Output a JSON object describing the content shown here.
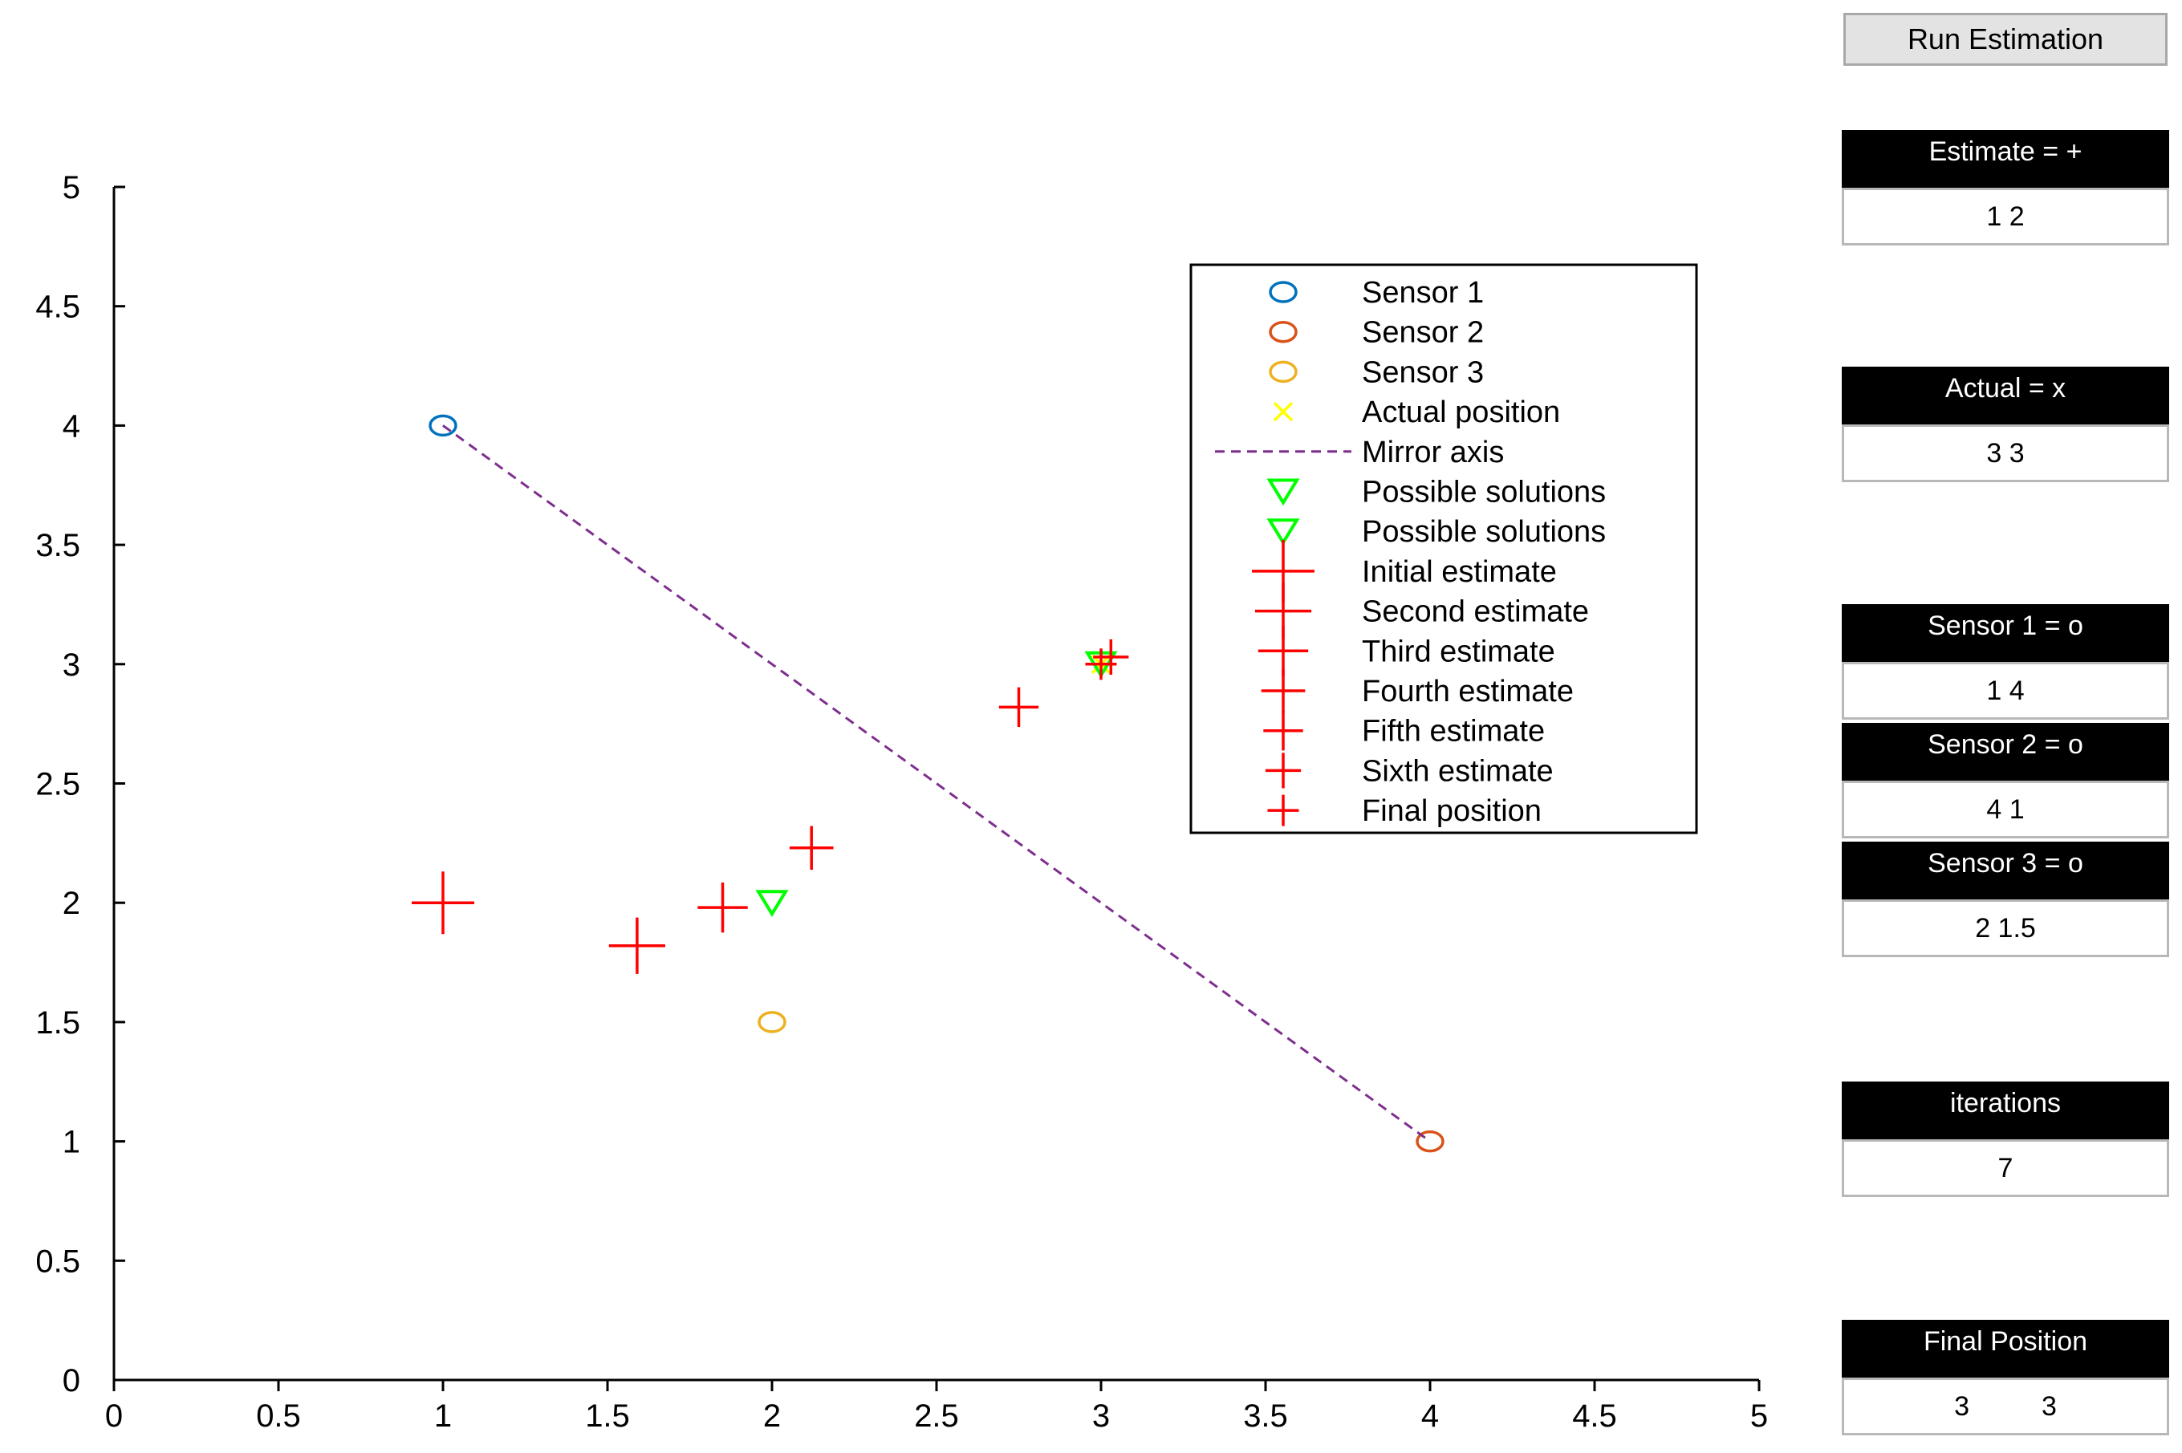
{
  "controls": {
    "run_button": "Run Estimation",
    "panels": [
      {
        "key": "estimate",
        "label": "Estimate = +",
        "value": "1 2"
      },
      {
        "key": "actual",
        "label": "Actual = x",
        "value": "3 3"
      },
      {
        "key": "sensor1",
        "label": "Sensor 1 = o",
        "value": "1 4"
      },
      {
        "key": "sensor2",
        "label": "Sensor 2 = o",
        "value": "4 1"
      },
      {
        "key": "sensor3",
        "label": "Sensor 3 = o",
        "value": "2 1.5"
      },
      {
        "key": "iterations",
        "label": "iterations",
        "value": "7"
      }
    ],
    "final_position": {
      "label": "Final Position",
      "x": "3",
      "y": "3"
    }
  },
  "chart_data": {
    "type": "scatter",
    "xlim": [
      0,
      5
    ],
    "ylim": [
      0,
      5
    ],
    "xticks": [
      "0",
      "0.5",
      "1",
      "1.5",
      "2",
      "2.5",
      "3",
      "3.5",
      "4",
      "4.5",
      "5"
    ],
    "yticks": [
      "0",
      "0.5",
      "1",
      "1.5",
      "2",
      "2.5",
      "3",
      "3.5",
      "4",
      "4.5",
      "5"
    ],
    "grid": false,
    "legend_position": "top-right",
    "series": [
      {
        "name": "Sensor 1",
        "marker": "circle",
        "color": "#0072bd",
        "points": [
          [
            1,
            4
          ]
        ]
      },
      {
        "name": "Sensor 2",
        "marker": "circle",
        "color": "#d95319",
        "points": [
          [
            4,
            1
          ]
        ]
      },
      {
        "name": "Sensor 3",
        "marker": "circle",
        "color": "#edb120",
        "points": [
          [
            2,
            1.5
          ]
        ]
      },
      {
        "name": "Actual position",
        "marker": "x",
        "color": "#ffff00",
        "points": [
          [
            3,
            3
          ]
        ]
      },
      {
        "name": "Mirror axis",
        "marker": "dashed-line",
        "color": "#7e2f8e",
        "points": [
          [
            1,
            4
          ],
          [
            4,
            1
          ]
        ]
      },
      {
        "name": "Possible solutions",
        "marker": "triangle-down",
        "color": "#00ff00",
        "points": [
          [
            3,
            3
          ]
        ]
      },
      {
        "name": "Possible solutions",
        "marker": "triangle-down",
        "color": "#00ff00",
        "points": [
          [
            2,
            2
          ]
        ]
      },
      {
        "name": "Initial estimate",
        "marker": "plus",
        "color": "#ff0000",
        "size": 3,
        "points": [
          [
            1,
            2
          ]
        ]
      },
      {
        "name": "Second estimate",
        "marker": "plus",
        "color": "#ff0000",
        "size": 2.7,
        "points": [
          [
            1.59,
            1.82
          ]
        ]
      },
      {
        "name": "Third estimate",
        "marker": "plus",
        "color": "#ff0000",
        "size": 2.4,
        "points": [
          [
            1.85,
            1.98
          ]
        ]
      },
      {
        "name": "Fourth estimate",
        "marker": "plus",
        "color": "#ff0000",
        "size": 2.1,
        "points": [
          [
            2.12,
            2.23
          ]
        ]
      },
      {
        "name": "Fifth estimate",
        "marker": "plus",
        "color": "#ff0000",
        "size": 1.9,
        "points": [
          [
            2.75,
            2.82
          ]
        ]
      },
      {
        "name": "Sixth estimate",
        "marker": "plus",
        "color": "#ff0000",
        "size": 1.7,
        "points": [
          [
            3.03,
            3.03
          ]
        ]
      },
      {
        "name": "Final position",
        "marker": "plus",
        "color": "#ff0000",
        "size": 1.5,
        "points": [
          [
            3,
            3
          ]
        ]
      }
    ]
  }
}
